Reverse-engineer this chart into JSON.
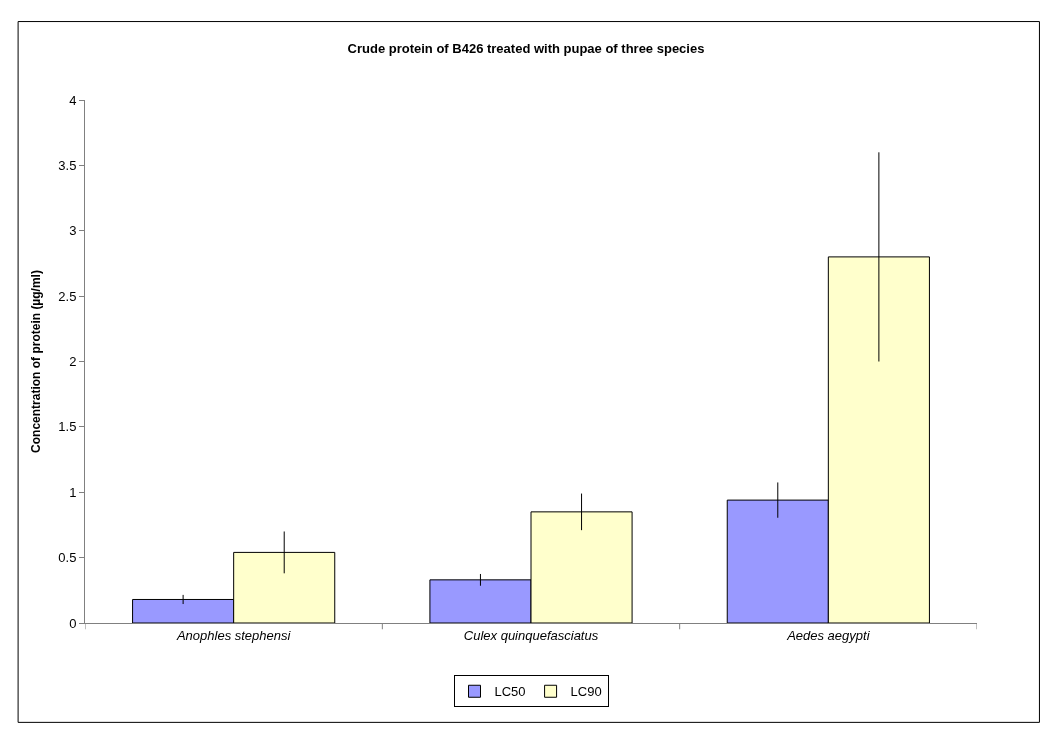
{
  "chart_data": {
    "type": "bar",
    "title": "Crude protein of B426 treated with pupae of three species",
    "ylabel": "Concentration of protein (µg/ml)",
    "categories": [
      "Anophles stephensi",
      "Culex quinquefasciatus",
      "Aedes aegypti"
    ],
    "series": [
      {
        "name": "LC50",
        "color": "#9999ff",
        "values": [
          0.18,
          0.33,
          0.94
        ],
        "errors": [
          0.035,
          0.045,
          0.135
        ]
      },
      {
        "name": "LC90",
        "color": "#ffffcc",
        "values": [
          0.54,
          0.85,
          2.8
        ],
        "errors": [
          0.16,
          0.14,
          0.8
        ]
      }
    ],
    "ylim": [
      0,
      4
    ],
    "yticks": [
      0,
      0.5,
      1,
      1.5,
      2,
      2.5,
      3,
      3.5,
      4
    ],
    "legend": "bottom"
  }
}
